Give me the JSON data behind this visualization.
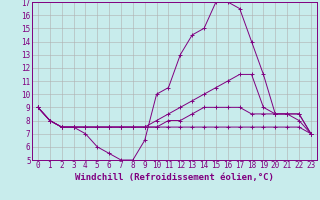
{
  "xlabel": "Windchill (Refroidissement éolien,°C)",
  "bg_color": "#c8ecec",
  "line_color": "#800080",
  "grid_color": "#b0b0b0",
  "xlim": [
    -0.5,
    23.5
  ],
  "ylim": [
    5,
    17
  ],
  "xticks": [
    0,
    1,
    2,
    3,
    4,
    5,
    6,
    7,
    8,
    9,
    10,
    11,
    12,
    13,
    14,
    15,
    16,
    17,
    18,
    19,
    20,
    21,
    22,
    23
  ],
  "yticks": [
    5,
    6,
    7,
    8,
    9,
    10,
    11,
    12,
    13,
    14,
    15,
    16,
    17
  ],
  "lines": [
    {
      "x": [
        0,
        1,
        2,
        3,
        4,
        5,
        6,
        7,
        8,
        9,
        10,
        11,
        12,
        13,
        14,
        15,
        16,
        17,
        18,
        19,
        20,
        21,
        22,
        23
      ],
      "y": [
        9,
        8,
        7.5,
        7.5,
        7,
        6,
        5.5,
        5,
        5,
        6.5,
        10,
        10.5,
        13,
        14.5,
        15,
        17,
        17,
        16.5,
        14,
        11.5,
        8.5,
        8.5,
        8,
        7
      ]
    },
    {
      "x": [
        0,
        1,
        2,
        3,
        4,
        5,
        6,
        7,
        8,
        9,
        10,
        11,
        12,
        13,
        14,
        15,
        16,
        17,
        18,
        19,
        20,
        21,
        22,
        23
      ],
      "y": [
        9,
        8,
        7.5,
        7.5,
        7.5,
        7.5,
        7.5,
        7.5,
        7.5,
        7.5,
        8,
        8.5,
        9,
        9.5,
        10,
        10.5,
        11,
        11.5,
        11.5,
        9,
        8.5,
        8.5,
        8.5,
        7
      ]
    },
    {
      "x": [
        0,
        1,
        2,
        3,
        4,
        5,
        6,
        7,
        8,
        9,
        10,
        11,
        12,
        13,
        14,
        15,
        16,
        17,
        18,
        19,
        20,
        21,
        22,
        23
      ],
      "y": [
        9,
        8,
        7.5,
        7.5,
        7.5,
        7.5,
        7.5,
        7.5,
        7.5,
        7.5,
        7.5,
        7.5,
        7.5,
        7.5,
        7.5,
        7.5,
        7.5,
        7.5,
        7.5,
        7.5,
        7.5,
        7.5,
        7.5,
        7
      ]
    },
    {
      "x": [
        0,
        1,
        2,
        3,
        4,
        5,
        6,
        7,
        8,
        9,
        10,
        11,
        12,
        13,
        14,
        15,
        16,
        17,
        18,
        19,
        20,
        21,
        22,
        23
      ],
      "y": [
        9,
        8,
        7.5,
        7.5,
        7.5,
        7.5,
        7.5,
        7.5,
        7.5,
        7.5,
        7.5,
        8,
        8,
        8.5,
        9,
        9,
        9,
        9,
        8.5,
        8.5,
        8.5,
        8.5,
        8.5,
        7
      ]
    }
  ],
  "font_size": 5.5,
  "label_font_size": 6.5
}
